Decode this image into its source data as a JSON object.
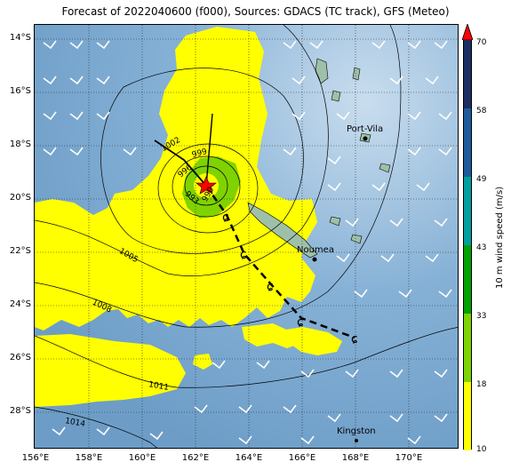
{
  "title": "Forecast of 2022040600 (f000), Sources: GDACS (TC track), GFS (Meteo)",
  "lat_labels": [
    "14°S",
    "16°S",
    "18°S",
    "20°S",
    "22°S",
    "24°S",
    "26°S",
    "28°S"
  ],
  "lon_labels": [
    "156°E",
    "158°E",
    "160°E",
    "162°E",
    "164°E",
    "166°E",
    "168°E",
    "170°E"
  ],
  "colorbar": {
    "label": "10 m wind speed (m/s)",
    "ticks": [
      "70",
      "58",
      "49",
      "43",
      "33",
      "18",
      "10"
    ],
    "colors": [
      "#ffff00",
      "#7fd300",
      "#00a100",
      "#00a0a0",
      "#1f5c9c",
      "#1c2e63",
      "#ff0000"
    ]
  },
  "cities": [
    {
      "name": "Port-Vila"
    },
    {
      "name": "Noumea"
    },
    {
      "name": "Kingston"
    }
  ],
  "isobar_labels": [
    "1002",
    "996",
    "999",
    "993",
    "990",
    "1005",
    "1008",
    "1011",
    "1014"
  ],
  "colors": {
    "ocean": "#7aa8cf",
    "wind_yellow": "#ffff00",
    "wind_green": "#7fd300",
    "land": "#9fc0a8",
    "track": "#000000",
    "center_star": "#ff0000"
  }
}
